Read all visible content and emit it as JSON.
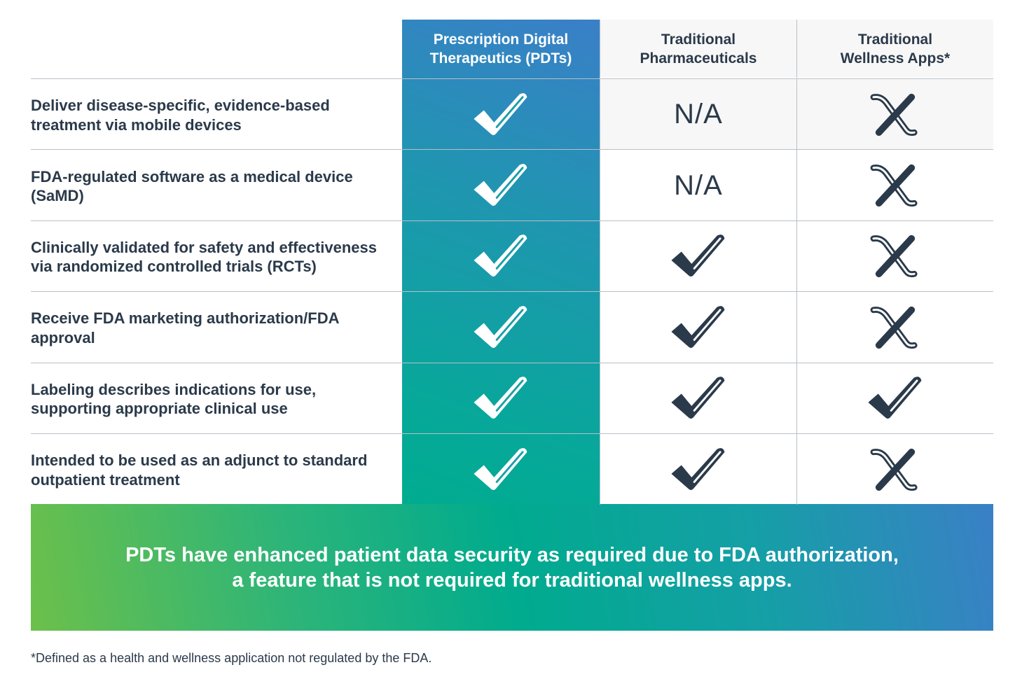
{
  "header": {
    "col_pdt": "Prescription Digital\nTherapeutics (PDTs)",
    "col_pharma": "Traditional\nPharmaceuticals",
    "col_wellness": "Traditional\nWellness Apps*"
  },
  "rows": [
    {
      "feature": "Deliver disease-specific, evidence-based treatment via mobile devices",
      "pdt": "check",
      "pharma": "N/A",
      "wellness": "x"
    },
    {
      "feature": "FDA-regulated software as a medical device (SaMD)",
      "pdt": "check",
      "pharma": "N/A",
      "wellness": "x"
    },
    {
      "feature": "Clinically validated for safety and effectiveness via randomized controlled trials (RCTs)",
      "pdt": "check",
      "pharma": "check",
      "wellness": "x"
    },
    {
      "feature": "Receive FDA marketing authorization/FDA approval",
      "pdt": "check",
      "pharma": "check",
      "wellness": "x"
    },
    {
      "feature": "Labeling describes indications for use, supporting appropriate clinical use",
      "pdt": "check",
      "pharma": "check",
      "wellness": "check"
    },
    {
      "feature": "Intended to be used as an adjunct to standard outpatient treatment",
      "pdt": "check",
      "pharma": "check",
      "wellness": "x"
    }
  ],
  "banner": {
    "line1": "PDTs have enhanced patient data security as required due to FDA authorization,",
    "line2": "a feature that is not required for traditional wellness apps."
  },
  "footnote": "*Defined as a health and wellness application not regulated by the FDA.",
  "colors": {
    "text": "#2b3a4a",
    "rule": "#b9bfc7",
    "gradient_blue": "#3a80c6",
    "gradient_teal": "#00ab8e",
    "gradient_green": "#6cc04a"
  }
}
